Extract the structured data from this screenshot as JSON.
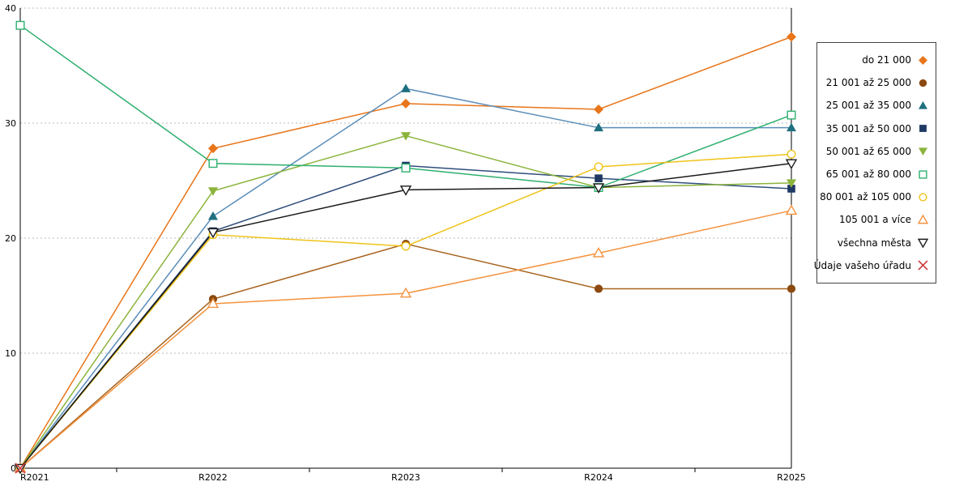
{
  "chart_data": {
    "type": "line",
    "title": "",
    "xlabel": "",
    "ylabel": "",
    "categories": [
      "R2021",
      "R2022",
      "R2023",
      "R2024",
      "R2025"
    ],
    "ylim": [
      0,
      40
    ],
    "yticks": [
      0,
      10,
      20,
      30,
      40
    ],
    "grid": "horizontal-dotted",
    "legend_position": "right",
    "series": [
      {
        "name": "do 21 000",
        "marker": "diamond",
        "color": "#E8751A",
        "line_color": "#E8751A",
        "values": [
          0,
          27.8,
          31.7,
          31.2,
          37.5
        ]
      },
      {
        "name": "21 001 až 25 000",
        "marker": "circle",
        "color": "#8C4A10",
        "line_color": "#A9641E",
        "values": [
          0,
          14.7,
          19.5,
          15.6,
          15.6
        ]
      },
      {
        "name": "25 001 až 35 000",
        "marker": "triangle",
        "color": "#1F7080",
        "line_color": "#5B8DB8",
        "values": [
          0,
          21.9,
          33.0,
          29.6,
          29.6
        ]
      },
      {
        "name": "35 001 až 50 000",
        "marker": "square",
        "color": "#1F3864",
        "line_color": "#2E4D7B",
        "values": [
          0,
          20.6,
          26.3,
          25.2,
          24.3
        ]
      },
      {
        "name": "50 001 až 65 000",
        "marker": "triangle-down",
        "color": "#8CB43C",
        "line_color": "#8CB43C",
        "values": [
          0,
          24.1,
          28.9,
          24.4,
          24.8
        ]
      },
      {
        "name": "65 001 až 80 000",
        "marker": "square-open",
        "color": "#2EAF6E",
        "line_color": "#2EAF6E",
        "values": [
          38.5,
          26.5,
          26.1,
          24.4,
          30.7
        ]
      },
      {
        "name": "80 001 až 105 000",
        "marker": "circle-open",
        "color": "#EFC319",
        "line_color": "#EFC319",
        "values": [
          0,
          20.3,
          19.3,
          26.2,
          27.3
        ]
      },
      {
        "name": "105 001 a více",
        "marker": "triangle-open",
        "color": "#F5923E",
        "line_color": "#F5923E",
        "values": [
          0,
          14.3,
          15.2,
          18.7,
          22.4
        ]
      },
      {
        "name": "všechna města",
        "marker": "triangle-down-open",
        "color": "#1A1A1A",
        "line_color": "#1A1A1A",
        "values": [
          0,
          20.5,
          24.2,
          24.4,
          26.5
        ]
      },
      {
        "name": "Údaje vašeho úřadu",
        "marker": "x",
        "color": "#CC3E3E",
        "line_color": "#CC3E3E",
        "values": [
          0,
          null,
          null,
          null,
          null
        ]
      }
    ]
  }
}
